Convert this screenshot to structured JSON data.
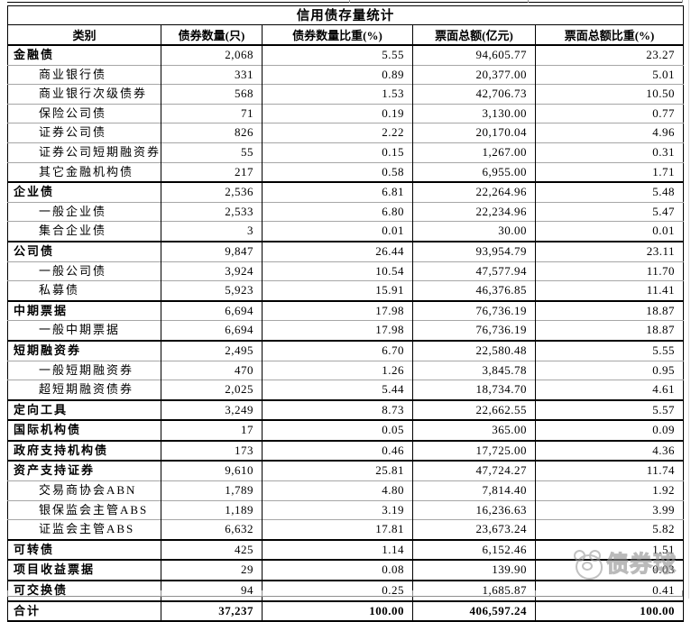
{
  "title": "信用债存量统计",
  "columns": [
    "类别",
    "债券数量(只)",
    "债券数量比重(%)",
    "票面总额(亿元)",
    "票面总额比重(%)"
  ],
  "rows": [
    {
      "label": "金融债",
      "level": 0,
      "count": "2,068",
      "count_pct": "5.55",
      "face": "94,605.77",
      "face_pct": "23.27"
    },
    {
      "label": "商业银行债",
      "level": 1,
      "count": "331",
      "count_pct": "0.89",
      "face": "20,377.00",
      "face_pct": "5.01"
    },
    {
      "label": "商业银行次级债券",
      "level": 1,
      "count": "568",
      "count_pct": "1.53",
      "face": "42,706.73",
      "face_pct": "10.50"
    },
    {
      "label": "保险公司债",
      "level": 1,
      "count": "71",
      "count_pct": "0.19",
      "face": "3,130.00",
      "face_pct": "0.77"
    },
    {
      "label": "证券公司债",
      "level": 1,
      "count": "826",
      "count_pct": "2.22",
      "face": "20,170.04",
      "face_pct": "4.96"
    },
    {
      "label": "证券公司短期融资券",
      "level": 1,
      "count": "55",
      "count_pct": "0.15",
      "face": "1,267.00",
      "face_pct": "0.31"
    },
    {
      "label": "其它金融机构债",
      "level": 1,
      "count": "217",
      "count_pct": "0.58",
      "face": "6,955.00",
      "face_pct": "1.71"
    },
    {
      "label": "企业债",
      "level": 0,
      "count": "2,536",
      "count_pct": "6.81",
      "face": "22,264.96",
      "face_pct": "5.48"
    },
    {
      "label": "一般企业债",
      "level": 1,
      "count": "2,533",
      "count_pct": "6.80",
      "face": "22,234.96",
      "face_pct": "5.47"
    },
    {
      "label": "集合企业债",
      "level": 1,
      "count": "3",
      "count_pct": "0.01",
      "face": "30.00",
      "face_pct": "0.01"
    },
    {
      "label": "公司债",
      "level": 0,
      "count": "9,847",
      "count_pct": "26.44",
      "face": "93,954.79",
      "face_pct": "23.11"
    },
    {
      "label": "一般公司债",
      "level": 1,
      "count": "3,924",
      "count_pct": "10.54",
      "face": "47,577.94",
      "face_pct": "11.70"
    },
    {
      "label": "私募债",
      "level": 1,
      "count": "5,923",
      "count_pct": "15.91",
      "face": "46,376.85",
      "face_pct": "11.41"
    },
    {
      "label": "中期票据",
      "level": 0,
      "count": "6,694",
      "count_pct": "17.98",
      "face": "76,736.19",
      "face_pct": "18.87"
    },
    {
      "label": "一般中期票据",
      "level": 1,
      "count": "6,694",
      "count_pct": "17.98",
      "face": "76,736.19",
      "face_pct": "18.87"
    },
    {
      "label": "短期融资券",
      "level": 0,
      "count": "2,495",
      "count_pct": "6.70",
      "face": "22,580.48",
      "face_pct": "5.55"
    },
    {
      "label": "一般短期融资券",
      "level": 1,
      "count": "470",
      "count_pct": "1.26",
      "face": "3,845.78",
      "face_pct": "0.95"
    },
    {
      "label": "超短期融资债券",
      "level": 1,
      "count": "2,025",
      "count_pct": "5.44",
      "face": "18,734.70",
      "face_pct": "4.61"
    },
    {
      "label": "定向工具",
      "level": 0,
      "count": "3,249",
      "count_pct": "8.73",
      "face": "22,662.55",
      "face_pct": "5.57"
    },
    {
      "label": "国际机构债",
      "level": 0,
      "count": "17",
      "count_pct": "0.05",
      "face": "365.00",
      "face_pct": "0.09"
    },
    {
      "label": "政府支持机构债",
      "level": 0,
      "count": "173",
      "count_pct": "0.46",
      "face": "17,725.00",
      "face_pct": "4.36"
    },
    {
      "label": "资产支持证券",
      "level": 0,
      "count": "9,610",
      "count_pct": "25.81",
      "face": "47,724.27",
      "face_pct": "11.74"
    },
    {
      "label": "交易商协会ABN",
      "level": 1,
      "count": "1,789",
      "count_pct": "4.80",
      "face": "7,814.40",
      "face_pct": "1.92"
    },
    {
      "label": "银保监会主管ABS",
      "level": 1,
      "count": "1,189",
      "count_pct": "3.19",
      "face": "16,236.63",
      "face_pct": "3.99"
    },
    {
      "label": "证监会主管ABS",
      "level": 1,
      "count": "6,632",
      "count_pct": "17.81",
      "face": "23,673.24",
      "face_pct": "5.82"
    },
    {
      "label": "可转债",
      "level": 0,
      "count": "425",
      "count_pct": "1.14",
      "face": "6,152.46",
      "face_pct": "1.51"
    },
    {
      "label": "项目收益票据",
      "level": 0,
      "count": "29",
      "count_pct": "0.08",
      "face": "139.90",
      "face_pct": "0.03"
    },
    {
      "label": "可交换债",
      "level": 0,
      "count": "94",
      "count_pct": "0.25",
      "face": "1,685.87",
      "face_pct": "0.41"
    }
  ],
  "total_row": {
    "label": "合计",
    "count": "37,237",
    "count_pct": "100.00",
    "face": "406,597.24",
    "face_pct": "100.00"
  },
  "watermark": {
    "text": "债券球"
  },
  "colors": {
    "border_strong": "#000000",
    "border_light": "#a6a6a6",
    "watermark_gray": "#9c9c9c"
  }
}
